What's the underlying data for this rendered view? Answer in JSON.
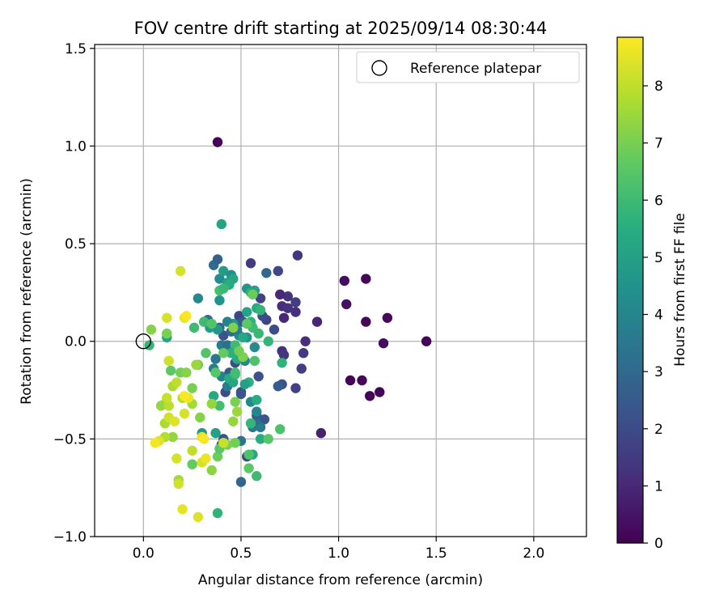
{
  "chart_data": {
    "type": "scatter",
    "title": "FOV centre drift starting at 2025/09/14 08:30:44",
    "xlabel": "Angular distance from reference (arcmin)",
    "ylabel": "Rotation from reference (arcmin)",
    "xlim": [
      -0.25,
      2.27
    ],
    "ylim": [
      -1.0,
      1.52
    ],
    "xticks": [
      "0.0",
      "0.5",
      "1.0",
      "1.5",
      "2.0"
    ],
    "xtick_values": [
      0.0,
      0.5,
      1.0,
      1.5,
      2.0
    ],
    "yticks": [
      "−1.0",
      "−0.5",
      "0.0",
      "0.5",
      "1.0",
      "1.5"
    ],
    "ytick_values": [
      -1.0,
      -0.5,
      0.0,
      0.5,
      1.0,
      1.5
    ],
    "grid": true,
    "legend": {
      "placement": "top-right",
      "entries": [
        "Reference platepar"
      ]
    },
    "reference_point": {
      "x": 0.0,
      "y": 0.0
    },
    "colorbar": {
      "label": "Hours from first FF file",
      "colormap": "viridis",
      "range": [
        0,
        8.85
      ],
      "ticks": [
        "0",
        "1",
        "2",
        "3",
        "4",
        "5",
        "6",
        "7",
        "8"
      ],
      "tick_values": [
        0,
        1,
        2,
        3,
        4,
        5,
        6,
        7,
        8
      ]
    },
    "series": [
      {
        "points": [
          {
            "x": 0.38,
            "y": 1.02,
            "c": 0.1
          },
          {
            "x": 1.45,
            "y": 0.0,
            "c": 0.1
          },
          {
            "x": 1.25,
            "y": 0.12,
            "c": 0.2
          },
          {
            "x": 1.14,
            "y": 0.32,
            "c": 0.2
          },
          {
            "x": 1.03,
            "y": 0.31,
            "c": 0.3
          },
          {
            "x": 1.04,
            "y": 0.19,
            "c": 0.4
          },
          {
            "x": 1.14,
            "y": 0.1,
            "c": 0.2
          },
          {
            "x": 1.23,
            "y": -0.01,
            "c": 0.3
          },
          {
            "x": 1.06,
            "y": -0.2,
            "c": 0.1
          },
          {
            "x": 1.12,
            "y": -0.2,
            "c": 0.2
          },
          {
            "x": 1.16,
            "y": -0.28,
            "c": 0.1
          },
          {
            "x": 1.21,
            "y": -0.26,
            "c": 0.1
          },
          {
            "x": 0.91,
            "y": -0.47,
            "c": 0.8
          },
          {
            "x": 0.89,
            "y": 0.1,
            "c": 0.9
          },
          {
            "x": 0.83,
            "y": 0.0,
            "c": 1.2
          },
          {
            "x": 0.82,
            "y": -0.06,
            "c": 1.5
          },
          {
            "x": 0.81,
            "y": -0.14,
            "c": 1.6
          },
          {
            "x": 0.78,
            "y": -0.24,
            "c": 1.7
          },
          {
            "x": 0.79,
            "y": 0.44,
            "c": 1.4
          },
          {
            "x": 0.78,
            "y": 0.2,
            "c": 1.6
          },
          {
            "x": 0.78,
            "y": 0.15,
            "c": 1.2
          },
          {
            "x": 0.74,
            "y": 0.23,
            "c": 1.3
          },
          {
            "x": 0.7,
            "y": 0.24,
            "c": 1.0
          },
          {
            "x": 0.71,
            "y": 0.18,
            "c": 1.1
          },
          {
            "x": 0.72,
            "y": 0.12,
            "c": 1.0
          },
          {
            "x": 0.74,
            "y": 0.17,
            "c": 1.3
          },
          {
            "x": 0.69,
            "y": 0.36,
            "c": 1.9
          },
          {
            "x": 0.71,
            "y": -0.05,
            "c": 1.2
          },
          {
            "x": 0.72,
            "y": -0.07,
            "c": 1.4
          },
          {
            "x": 0.71,
            "y": -0.22,
            "c": 2.2
          },
          {
            "x": 0.69,
            "y": -0.23,
            "c": 2.6
          },
          {
            "x": 0.67,
            "y": 0.06,
            "c": 2.1
          },
          {
            "x": 0.63,
            "y": 0.35,
            "c": 2.9
          },
          {
            "x": 0.63,
            "y": 0.11,
            "c": 1.8
          },
          {
            "x": 0.61,
            "y": 0.13,
            "c": 2.0
          },
          {
            "x": 0.6,
            "y": 0.22,
            "c": 1.7
          },
          {
            "x": 0.55,
            "y": 0.4,
            "c": 1.5
          },
          {
            "x": 0.49,
            "y": 0.13,
            "c": 1.8
          },
          {
            "x": 0.51,
            "y": 0.1,
            "c": 2.4
          },
          {
            "x": 0.47,
            "y": 0.09,
            "c": 2.7
          },
          {
            "x": 0.45,
            "y": -0.05,
            "c": 1.8
          },
          {
            "x": 0.47,
            "y": -0.11,
            "c": 2.0
          },
          {
            "x": 0.44,
            "y": -0.16,
            "c": 2.4
          },
          {
            "x": 0.42,
            "y": -0.26,
            "c": 2.1
          },
          {
            "x": 0.5,
            "y": -0.26,
            "c": 1.9
          },
          {
            "x": 0.5,
            "y": -0.27,
            "c": 2.3
          },
          {
            "x": 0.59,
            "y": -0.18,
            "c": 2.2
          },
          {
            "x": 0.58,
            "y": -0.38,
            "c": 2.5
          },
          {
            "x": 0.62,
            "y": -0.4,
            "c": 2.3
          },
          {
            "x": 0.53,
            "y": -0.59,
            "c": 2.0
          },
          {
            "x": 0.5,
            "y": -0.72,
            "c": 2.9
          },
          {
            "x": 0.4,
            "y": -0.53,
            "c": 2.1
          },
          {
            "x": 0.41,
            "y": -0.5,
            "c": 2.3
          },
          {
            "x": 0.41,
            "y": 0.03,
            "c": 2.2
          },
          {
            "x": 0.45,
            "y": 0.05,
            "c": 3.0
          },
          {
            "x": 0.36,
            "y": 0.39,
            "c": 3.1
          },
          {
            "x": 0.38,
            "y": 0.42,
            "c": 2.8
          },
          {
            "x": 0.33,
            "y": 0.11,
            "c": 3.3
          },
          {
            "x": 0.39,
            "y": 0.07,
            "c": 3.0
          },
          {
            "x": 0.37,
            "y": -0.09,
            "c": 3.5
          },
          {
            "x": 0.4,
            "y": -0.02,
            "c": 3.6
          },
          {
            "x": 0.43,
            "y": -0.02,
            "c": 3.2
          },
          {
            "x": 0.36,
            "y": -0.14,
            "c": 3.8
          },
          {
            "x": 0.4,
            "y": -0.18,
            "c": 3.9
          },
          {
            "x": 0.43,
            "y": -0.23,
            "c": 3.7
          },
          {
            "x": 0.5,
            "y": -0.51,
            "c": 3.4
          },
          {
            "x": 0.56,
            "y": -0.44,
            "c": 3.5
          },
          {
            "x": 0.58,
            "y": -0.42,
            "c": 3.1
          },
          {
            "x": 0.6,
            "y": -0.44,
            "c": 3.6
          },
          {
            "x": 0.58,
            "y": -0.36,
            "c": 4.0
          },
          {
            "x": 0.55,
            "y": -0.31,
            "c": 4.2
          },
          {
            "x": 0.52,
            "y": -0.1,
            "c": 4.1
          },
          {
            "x": 0.57,
            "y": -0.03,
            "c": 4.3
          },
          {
            "x": 0.59,
            "y": 0.04,
            "c": 4.4
          },
          {
            "x": 0.53,
            "y": 0.02,
            "c": 4.5
          },
          {
            "x": 0.49,
            "y": 0.03,
            "c": 4.0
          },
          {
            "x": 0.48,
            "y": 0.06,
            "c": 3.6
          },
          {
            "x": 0.46,
            "y": 0.09,
            "c": 4.6
          },
          {
            "x": 0.43,
            "y": 0.1,
            "c": 3.9
          },
          {
            "x": 0.38,
            "y": 0.06,
            "c": 4.7
          },
          {
            "x": 0.34,
            "y": 0.07,
            "c": 4.8
          },
          {
            "x": 0.28,
            "y": 0.22,
            "c": 4.1
          },
          {
            "x": 0.4,
            "y": 0.6,
            "c": 5.1
          },
          {
            "x": 0.39,
            "y": 0.21,
            "c": 4.5
          },
          {
            "x": 0.39,
            "y": 0.32,
            "c": 4.3
          },
          {
            "x": 0.41,
            "y": 0.36,
            "c": 4.9
          },
          {
            "x": 0.43,
            "y": 0.3,
            "c": 5.0
          },
          {
            "x": 0.45,
            "y": 0.34,
            "c": 4.4
          },
          {
            "x": 0.46,
            "y": 0.32,
            "c": 5.2
          },
          {
            "x": 0.44,
            "y": 0.29,
            "c": 5.5
          },
          {
            "x": 0.53,
            "y": 0.27,
            "c": 4.6
          },
          {
            "x": 0.55,
            "y": 0.25,
            "c": 5.6
          },
          {
            "x": 0.57,
            "y": 0.26,
            "c": 5.0
          },
          {
            "x": 0.58,
            "y": 0.17,
            "c": 5.4
          },
          {
            "x": 0.6,
            "y": 0.16,
            "c": 5.8
          },
          {
            "x": 0.53,
            "y": 0.15,
            "c": 5.2
          },
          {
            "x": 0.55,
            "y": 0.1,
            "c": 5.7
          },
          {
            "x": 0.56,
            "y": 0.07,
            "c": 6.0
          },
          {
            "x": 0.51,
            "y": 0.02,
            "c": 5.3
          },
          {
            "x": 0.59,
            "y": 0.04,
            "c": 5.9
          },
          {
            "x": 0.64,
            "y": 0.0,
            "c": 5.8
          },
          {
            "x": 0.47,
            "y": -0.02,
            "c": 6.0
          },
          {
            "x": 0.45,
            "y": -0.06,
            "c": 5.6
          },
          {
            "x": 0.48,
            "y": -0.09,
            "c": 5.5
          },
          {
            "x": 0.44,
            "y": -0.19,
            "c": 5.4
          },
          {
            "x": 0.46,
            "y": -0.21,
            "c": 5.2
          },
          {
            "x": 0.47,
            "y": -0.17,
            "c": 5.9
          },
          {
            "x": 0.54,
            "y": -0.21,
            "c": 5.6
          },
          {
            "x": 0.52,
            "y": -0.22,
            "c": 5.0
          },
          {
            "x": 0.58,
            "y": -0.3,
            "c": 5.5
          },
          {
            "x": 0.55,
            "y": -0.42,
            "c": 5.8
          },
          {
            "x": 0.6,
            "y": -0.5,
            "c": 5.5
          },
          {
            "x": 0.56,
            "y": -0.58,
            "c": 5.3
          },
          {
            "x": 0.58,
            "y": -0.69,
            "c": 6.0
          },
          {
            "x": 0.38,
            "y": -0.88,
            "c": 5.7
          },
          {
            "x": 0.37,
            "y": -0.47,
            "c": 5.0
          },
          {
            "x": 0.36,
            "y": -0.28,
            "c": 5.3
          },
          {
            "x": 0.39,
            "y": -0.33,
            "c": 6.1
          },
          {
            "x": 0.3,
            "y": -0.47,
            "c": 4.6
          },
          {
            "x": 0.31,
            "y": 0.1,
            "c": 6.0
          },
          {
            "x": 0.26,
            "y": 0.07,
            "c": 6.0
          },
          {
            "x": 0.35,
            "y": 0.09,
            "c": 6.4
          },
          {
            "x": 0.39,
            "y": 0.26,
            "c": 6.2
          },
          {
            "x": 0.41,
            "y": 0.27,
            "c": 5.9
          },
          {
            "x": 0.32,
            "y": -0.06,
            "c": 6.4
          },
          {
            "x": 0.28,
            "y": -0.12,
            "c": 6.8
          },
          {
            "x": 0.37,
            "y": -0.16,
            "c": 6.5
          },
          {
            "x": 0.41,
            "y": -0.06,
            "c": 6.7
          },
          {
            "x": 0.47,
            "y": -0.16,
            "c": 6.1
          },
          {
            "x": 0.51,
            "y": -0.08,
            "c": 7.1
          },
          {
            "x": 0.49,
            "y": -0.05,
            "c": 6.9
          },
          {
            "x": 0.53,
            "y": 0.09,
            "c": 6.6
          },
          {
            "x": 0.46,
            "y": 0.07,
            "c": 7.1
          },
          {
            "x": 0.56,
            "y": 0.24,
            "c": 6.8
          },
          {
            "x": 0.57,
            "y": -0.1,
            "c": 6.3
          },
          {
            "x": 0.64,
            "y": -0.5,
            "c": 6.5
          },
          {
            "x": 0.7,
            "y": -0.45,
            "c": 6.3
          },
          {
            "x": 0.71,
            "y": -0.11,
            "c": 5.7
          },
          {
            "x": 0.54,
            "y": -0.58,
            "c": 6.3
          },
          {
            "x": 0.54,
            "y": -0.65,
            "c": 6.6
          },
          {
            "x": 0.47,
            "y": -0.52,
            "c": 6.9
          },
          {
            "x": 0.38,
            "y": -0.59,
            "c": 6.8
          },
          {
            "x": 0.35,
            "y": -0.66,
            "c": 7.3
          },
          {
            "x": 0.25,
            "y": -0.63,
            "c": 6.7
          },
          {
            "x": 0.39,
            "y": -0.55,
            "c": 6.5
          },
          {
            "x": 0.43,
            "y": -0.53,
            "c": 7.0
          },
          {
            "x": 0.46,
            "y": -0.41,
            "c": 7.4
          },
          {
            "x": 0.48,
            "y": -0.36,
            "c": 7.5
          },
          {
            "x": 0.47,
            "y": -0.31,
            "c": 7.0
          },
          {
            "x": 0.35,
            "y": -0.32,
            "c": 7.4
          },
          {
            "x": 0.29,
            "y": -0.39,
            "c": 7.2
          },
          {
            "x": 0.25,
            "y": -0.32,
            "c": 7.6
          },
          {
            "x": 0.25,
            "y": -0.24,
            "c": 7.0
          },
          {
            "x": 0.27,
            "y": -0.12,
            "c": 7.5
          },
          {
            "x": 0.14,
            "y": -0.15,
            "c": 6.6
          },
          {
            "x": 0.19,
            "y": -0.16,
            "c": 6.9
          },
          {
            "x": 0.22,
            "y": -0.16,
            "c": 7.2
          },
          {
            "x": 0.15,
            "y": -0.23,
            "c": 7.7
          },
          {
            "x": 0.17,
            "y": -0.21,
            "c": 8.0
          },
          {
            "x": 0.2,
            "y": -0.29,
            "c": 7.8
          },
          {
            "x": 0.11,
            "y": -0.32,
            "c": 7.2
          },
          {
            "x": 0.09,
            "y": -0.33,
            "c": 7.4
          },
          {
            "x": 0.13,
            "y": -0.33,
            "c": 7.9
          },
          {
            "x": 0.12,
            "y": -0.29,
            "c": 8.1
          },
          {
            "x": 0.11,
            "y": -0.42,
            "c": 7.7
          },
          {
            "x": 0.15,
            "y": -0.49,
            "c": 7.4
          },
          {
            "x": 0.11,
            "y": -0.49,
            "c": 7.8
          },
          {
            "x": 0.13,
            "y": -0.39,
            "c": 8.2
          },
          {
            "x": 0.16,
            "y": -0.41,
            "c": 8.4
          },
          {
            "x": 0.21,
            "y": -0.37,
            "c": 8.3
          },
          {
            "x": 0.23,
            "y": -0.29,
            "c": 8.6
          },
          {
            "x": 0.21,
            "y": -0.28,
            "c": 8.8
          },
          {
            "x": 0.08,
            "y": -0.51,
            "c": 8.4
          },
          {
            "x": 0.06,
            "y": -0.52,
            "c": 8.7
          },
          {
            "x": 0.17,
            "y": -0.6,
            "c": 8.3
          },
          {
            "x": 0.18,
            "y": -0.71,
            "c": 7.6
          },
          {
            "x": 0.18,
            "y": -0.73,
            "c": 8.2
          },
          {
            "x": 0.25,
            "y": -0.56,
            "c": 8.0
          },
          {
            "x": 0.3,
            "y": -0.62,
            "c": 8.3
          },
          {
            "x": 0.32,
            "y": -0.6,
            "c": 8.6
          },
          {
            "x": 0.3,
            "y": -0.49,
            "c": 8.5
          },
          {
            "x": 0.31,
            "y": -0.5,
            "c": 8.8
          },
          {
            "x": 0.41,
            "y": -0.52,
            "c": 8.1
          },
          {
            "x": 0.2,
            "y": -0.86,
            "c": 8.5
          },
          {
            "x": 0.28,
            "y": -0.9,
            "c": 8.4
          },
          {
            "x": 0.12,
            "y": 0.02,
            "c": 5.1
          },
          {
            "x": 0.12,
            "y": 0.04,
            "c": 7.0
          },
          {
            "x": 0.12,
            "y": 0.12,
            "c": 8.3
          },
          {
            "x": 0.21,
            "y": 0.12,
            "c": 8.5
          },
          {
            "x": 0.22,
            "y": 0.13,
            "c": 8.8
          },
          {
            "x": 0.19,
            "y": 0.36,
            "c": 8.3
          },
          {
            "x": 0.13,
            "y": -0.1,
            "c": 8.2
          },
          {
            "x": 0.04,
            "y": 0.06,
            "c": 7.2
          },
          {
            "x": 0.03,
            "y": -0.02,
            "c": 5.8
          }
        ]
      }
    ]
  }
}
